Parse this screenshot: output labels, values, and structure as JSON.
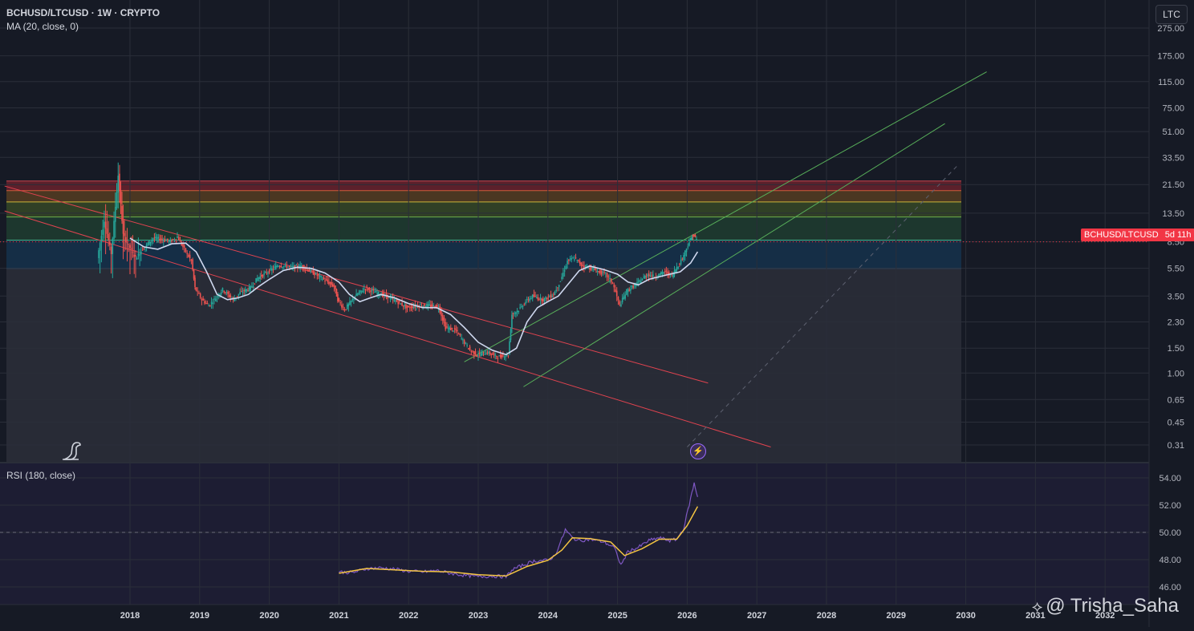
{
  "header": {
    "symbol_title": "BCHUSD/LTCUSD · 1W · CRYPTO",
    "ma_label": "MA (20, close, 0)",
    "rsi_label": "RSI (180, close)",
    "scale_button": "LTC"
  },
  "price_tag": {
    "symbol": "BCHUSD/LTCUSD",
    "countdown": "5d 11h",
    "color": "#f23645"
  },
  "watermark": {
    "mark": "⟡",
    "text": "@ Trisha_Saha"
  },
  "icons": {
    "logo": "dinosaur-logo-icon",
    "bolt": "lightning-bolt-icon"
  },
  "colors": {
    "background": "#161a25",
    "candle_up": "#26a69a",
    "candle_down": "#ef5350",
    "ma": "#cfd8ef",
    "rsi": "#7e57c2",
    "rsi_ma": "#f4c542",
    "channel_red": "#e0434f",
    "channel_green": "#58b05a"
  },
  "chart_data": [
    {
      "type": "line",
      "title": "BCHUSD/LTCUSD · 1W · CRYPTO",
      "y_scale": "log",
      "y_ticks": [
        "275.00",
        "175.00",
        "115.00",
        "75.00",
        "51.00",
        "33.50",
        "21.50",
        "13.50",
        "8.50",
        "5.50",
        "3.50",
        "2.30",
        "1.50",
        "1.00",
        "0.65",
        "0.45",
        "0.31"
      ],
      "x_ticks": [
        "2018",
        "2019",
        "2020",
        "2021",
        "2022",
        "2023",
        "2024",
        "2025",
        "2026",
        "2027",
        "2028",
        "2029",
        "2030",
        "2031",
        "2032"
      ],
      "series": [
        {
          "name": "BCHUSD/LTCUSD",
          "points": [
            [
              2017.55,
              6.5
            ],
            [
              2017.65,
              12
            ],
            [
              2017.75,
              7
            ],
            [
              2017.85,
              25
            ],
            [
              2017.92,
              9.5
            ],
            [
              2018.0,
              8
            ],
            [
              2018.1,
              6.5
            ],
            [
              2018.2,
              7.5
            ],
            [
              2018.35,
              9
            ],
            [
              2018.5,
              8.8
            ],
            [
              2018.6,
              8.5
            ],
            [
              2018.7,
              9.2
            ],
            [
              2018.8,
              7.5
            ],
            [
              2018.9,
              6.2
            ],
            [
              2018.95,
              4.0
            ],
            [
              2019.05,
              3.3
            ],
            [
              2019.15,
              3.0
            ],
            [
              2019.25,
              3.4
            ],
            [
              2019.35,
              3.9
            ],
            [
              2019.5,
              3.3
            ],
            [
              2019.6,
              3.7
            ],
            [
              2019.75,
              4.0
            ],
            [
              2019.85,
              4.7
            ],
            [
              2020.0,
              5.2
            ],
            [
              2020.15,
              5.8
            ],
            [
              2020.35,
              5.6
            ],
            [
              2020.5,
              5.7
            ],
            [
              2020.65,
              5.1
            ],
            [
              2020.8,
              4.6
            ],
            [
              2020.95,
              4.1
            ],
            [
              2021.0,
              3.3
            ],
            [
              2021.1,
              2.8
            ],
            [
              2021.25,
              3.5
            ],
            [
              2021.4,
              4.0
            ],
            [
              2021.55,
              3.7
            ],
            [
              2021.7,
              3.5
            ],
            [
              2021.85,
              3.2
            ],
            [
              2022.0,
              2.9
            ],
            [
              2022.15,
              3.0
            ],
            [
              2022.3,
              3.0
            ],
            [
              2022.45,
              2.95
            ],
            [
              2022.55,
              2.1
            ],
            [
              2022.7,
              2.0
            ],
            [
              2022.8,
              1.7
            ],
            [
              2022.9,
              1.45
            ],
            [
              2023.0,
              1.35
            ],
            [
              2023.15,
              1.4
            ],
            [
              2023.3,
              1.3
            ],
            [
              2023.45,
              1.35
            ],
            [
              2023.5,
              2.6
            ],
            [
              2023.6,
              2.8
            ],
            [
              2023.7,
              3.2
            ],
            [
              2023.8,
              3.5
            ],
            [
              2023.95,
              3.3
            ],
            [
              2024.1,
              3.6
            ],
            [
              2024.2,
              4.5
            ],
            [
              2024.3,
              6.2
            ],
            [
              2024.4,
              6.5
            ],
            [
              2024.5,
              5.8
            ],
            [
              2024.6,
              5.6
            ],
            [
              2024.75,
              5.2
            ],
            [
              2024.85,
              5.0
            ],
            [
              2024.95,
              4.3
            ],
            [
              2025.05,
              3.0
            ],
            [
              2025.15,
              3.8
            ],
            [
              2025.3,
              4.3
            ],
            [
              2025.45,
              5.0
            ],
            [
              2025.55,
              4.8
            ],
            [
              2025.7,
              5.2
            ],
            [
              2025.8,
              4.9
            ],
            [
              2025.85,
              5.4
            ],
            [
              2025.95,
              6.5
            ],
            [
              2026.05,
              8.5
            ],
            [
              2026.1,
              9.5
            ],
            [
              2026.15,
              8.8
            ]
          ]
        },
        {
          "name": "MA (20, close, 0)",
          "points": [
            [
              2018.0,
              9.0
            ],
            [
              2018.2,
              7.8
            ],
            [
              2018.4,
              7.5
            ],
            [
              2018.6,
              8.2
            ],
            [
              2018.8,
              8.3
            ],
            [
              2018.95,
              7.2
            ],
            [
              2019.1,
              5.2
            ],
            [
              2019.25,
              3.6
            ],
            [
              2019.4,
              3.3
            ],
            [
              2019.55,
              3.4
            ],
            [
              2019.7,
              3.6
            ],
            [
              2019.85,
              4.1
            ],
            [
              2020.0,
              4.6
            ],
            [
              2020.2,
              5.3
            ],
            [
              2020.4,
              5.6
            ],
            [
              2020.6,
              5.5
            ],
            [
              2020.8,
              5.1
            ],
            [
              2021.0,
              4.4
            ],
            [
              2021.15,
              3.6
            ],
            [
              2021.3,
              3.2
            ],
            [
              2021.45,
              3.4
            ],
            [
              2021.6,
              3.6
            ],
            [
              2021.8,
              3.4
            ],
            [
              2022.0,
              3.1
            ],
            [
              2022.2,
              2.9
            ],
            [
              2022.4,
              2.9
            ],
            [
              2022.6,
              2.6
            ],
            [
              2022.8,
              2.1
            ],
            [
              2023.0,
              1.65
            ],
            [
              2023.2,
              1.45
            ],
            [
              2023.4,
              1.35
            ],
            [
              2023.55,
              1.5
            ],
            [
              2023.7,
              2.3
            ],
            [
              2023.85,
              2.9
            ],
            [
              2024.0,
              3.2
            ],
            [
              2024.15,
              3.5
            ],
            [
              2024.3,
              4.3
            ],
            [
              2024.45,
              5.3
            ],
            [
              2024.6,
              5.7
            ],
            [
              2024.8,
              5.4
            ],
            [
              2025.0,
              5.0
            ],
            [
              2025.15,
              4.4
            ],
            [
              2025.3,
              4.2
            ],
            [
              2025.45,
              4.6
            ],
            [
              2025.6,
              4.8
            ],
            [
              2025.75,
              5.0
            ],
            [
              2025.9,
              5.2
            ],
            [
              2026.05,
              6.0
            ],
            [
              2026.15,
              7.2
            ]
          ]
        }
      ],
      "fib_levels": [
        22.8,
        19.5,
        16.2,
        12.7,
        8.7,
        5.5
      ],
      "trendlines": [
        {
          "color": "red",
          "from": [
            2016.2,
            21.0
          ],
          "to": [
            2026.3,
            0.85
          ]
        },
        {
          "color": "red",
          "from": [
            2016.2,
            14.0
          ],
          "to": [
            2027.2,
            0.3
          ]
        },
        {
          "color": "green",
          "from": [
            2022.8,
            1.2
          ],
          "to": [
            2030.3,
            135
          ]
        },
        {
          "color": "green",
          "from": [
            2023.65,
            0.8
          ],
          "to": [
            2029.7,
            58
          ]
        },
        {
          "color": "grey-dashed",
          "from": [
            2026.0,
            0.3
          ],
          "to": [
            2029.9,
            30
          ]
        }
      ]
    },
    {
      "type": "line",
      "title": "RSI (180, close)",
      "y_ticks": [
        "54.00",
        "52.00",
        "50.00",
        "48.00",
        "46.00"
      ],
      "ylim": [
        45.3,
        55.0
      ],
      "series": [
        {
          "name": "RSI",
          "points": [
            [
              2021.0,
              47.1
            ],
            [
              2021.2,
              47.05
            ],
            [
              2021.4,
              47.35
            ],
            [
              2021.6,
              47.4
            ],
            [
              2021.8,
              47.3
            ],
            [
              2022.0,
              47.15
            ],
            [
              2022.2,
              47.1
            ],
            [
              2022.4,
              47.2
            ],
            [
              2022.6,
              47.0
            ],
            [
              2022.8,
              46.85
            ],
            [
              2023.0,
              46.75
            ],
            [
              2023.2,
              46.8
            ],
            [
              2023.4,
              46.75
            ],
            [
              2023.5,
              47.3
            ],
            [
              2023.65,
              47.6
            ],
            [
              2023.8,
              47.9
            ],
            [
              2024.0,
              47.95
            ],
            [
              2024.1,
              48.3
            ],
            [
              2024.2,
              49.5
            ],
            [
              2024.25,
              50.2
            ],
            [
              2024.35,
              49.6
            ],
            [
              2024.45,
              49.4
            ],
            [
              2024.6,
              49.5
            ],
            [
              2024.8,
              49.3
            ],
            [
              2024.95,
              48.9
            ],
            [
              2025.05,
              47.6
            ],
            [
              2025.15,
              48.6
            ],
            [
              2025.3,
              48.9
            ],
            [
              2025.45,
              49.4
            ],
            [
              2025.6,
              49.6
            ],
            [
              2025.75,
              49.4
            ],
            [
              2025.85,
              49.5
            ],
            [
              2025.95,
              50.3
            ],
            [
              2026.05,
              52.5
            ],
            [
              2026.1,
              53.6
            ],
            [
              2026.15,
              52.6
            ]
          ]
        },
        {
          "name": "RSI MA",
          "points": [
            [
              2021.0,
              47.0
            ],
            [
              2021.4,
              47.35
            ],
            [
              2021.8,
              47.25
            ],
            [
              2022.2,
              47.15
            ],
            [
              2022.6,
              47.1
            ],
            [
              2023.0,
              46.9
            ],
            [
              2023.4,
              46.8
            ],
            [
              2023.7,
              47.5
            ],
            [
              2024.0,
              47.95
            ],
            [
              2024.2,
              48.7
            ],
            [
              2024.35,
              49.6
            ],
            [
              2024.6,
              49.55
            ],
            [
              2024.9,
              49.3
            ],
            [
              2025.1,
              48.3
            ],
            [
              2025.35,
              48.8
            ],
            [
              2025.6,
              49.5
            ],
            [
              2025.85,
              49.5
            ],
            [
              2026.0,
              50.5
            ],
            [
              2026.15,
              51.9
            ]
          ]
        }
      ]
    }
  ]
}
